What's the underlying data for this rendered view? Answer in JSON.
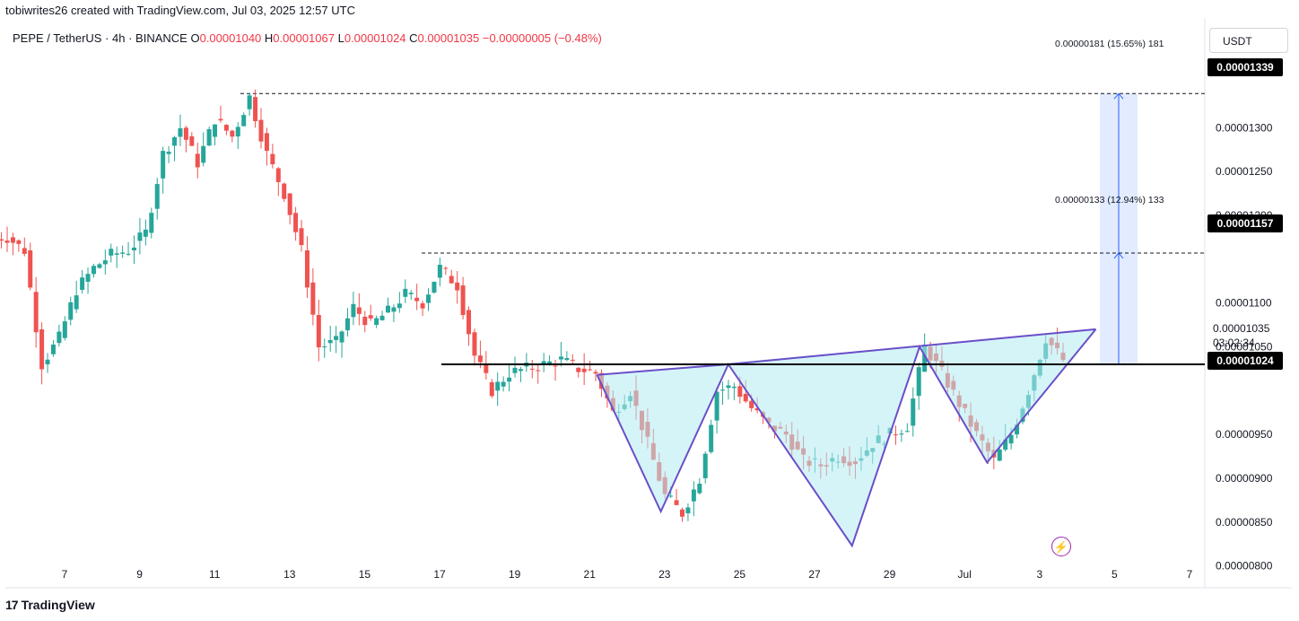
{
  "header": {
    "byline": "tobiwrites26 created with TradingView.com, Jul 03, 2025 12:57 UTC",
    "symbol": "PEPE / TetherUS · 4h · BINANCE",
    "o_key": "O",
    "o_val": "0.00001040",
    "h_key": "H",
    "h_val": "0.00001067",
    "l_key": "L",
    "l_val": "0.00001024",
    "c_key": "C",
    "c_val": "0.00001035",
    "change": "−0.00000005 (−0.48%)"
  },
  "currency_button": "USDT",
  "price_labels": {
    "target": "0.00001339",
    "neckline_level": "0.00001157",
    "current": "0.00001035",
    "countdown": "03:02:34",
    "low": "0.00001024"
  },
  "measurements": {
    "upper": "0.00000181 (15.65%) 181",
    "lower": "0.00000133 (12.94%) 133"
  },
  "footer_logo": "TradingView",
  "colors": {
    "up": "#26a69a",
    "down": "#ef5350",
    "pattern_line": "#6a4fc8",
    "pattern_fill": "#b2ebf2",
    "projection_fill": "#dbe6ff",
    "projection_line": "#2962ff"
  },
  "chart_data": {
    "type": "candlestick",
    "title": "PEPE / TetherUS · 4h · BINANCE",
    "ylim": [
      7.75e-06,
      1.415e-05
    ],
    "y_ticks": [
      "0.00001300",
      "0.00001250",
      "0.00001200",
      "0.00001100",
      "0.00001050",
      "0.00000950",
      "0.00000900",
      "0.00000850",
      "0.00000800"
    ],
    "x_ticks": [
      "7",
      "9",
      "11",
      "13",
      "15",
      "17",
      "19",
      "21",
      "23",
      "25",
      "27",
      "29",
      "Jul",
      "3",
      "5",
      "7"
    ],
    "close_path": [
      [
        "Jun 6",
        1.175e-05
      ],
      [
        "Jun 6 12h",
        1.16e-05
      ],
      [
        "Jun 6 20h",
        1.03e-05
      ],
      [
        "Jun 7",
        1.06e-05
      ],
      [
        "Jun 7 12h",
        1.115e-05
      ],
      [
        "Jun 8",
        1.14e-05
      ],
      [
        "Jun 8 12h",
        1.155e-05
      ],
      [
        "Jun 9",
        1.16e-05
      ],
      [
        "Jun 9 12h",
        1.18e-05
      ],
      [
        "Jun 10",
        1.27e-05
      ],
      [
        "Jun 10 8h",
        1.3e-05
      ],
      [
        "Jun 10 16h",
        1.26e-05
      ],
      [
        "Jun 11",
        1.31e-05
      ],
      [
        "Jun 11 12h",
        1.29e-05
      ],
      [
        "Jun 11 20h",
        1.335e-05
      ],
      [
        "Jun 12",
        1.27e-05
      ],
      [
        "Jun 12 12h",
        1.225e-05
      ],
      [
        "Jun 12 20h",
        1.16e-05
      ],
      [
        "Jun 13",
        1.05e-05
      ],
      [
        "Jun 13 12h",
        1.055e-05
      ],
      [
        "Jun 14",
        1.095e-05
      ],
      [
        "Jun 14 12h",
        1.075e-05
      ],
      [
        "Jun 15",
        1.09e-05
      ],
      [
        "Jun 15 12h",
        1.11e-05
      ],
      [
        "Jun 16",
        1.1e-05
      ],
      [
        "Jun 16 12h",
        1.14e-05
      ],
      [
        "Jun 16 20h",
        1.12e-05
      ],
      [
        "Jun 17",
        1.04e-05
      ],
      [
        "Jun 17 12h",
        1e-05
      ],
      [
        "Jun 18",
        1.02e-05
      ],
      [
        "Jun 18 12h",
        1.025e-05
      ],
      [
        "Jun 19",
        1.03e-05
      ],
      [
        "Jun 19 12h",
        1.035e-05
      ],
      [
        "Jun 20",
        1.025e-05
      ],
      [
        "Jun 20 12h",
        1.02e-05
      ],
      [
        "Jun 21",
        9.75e-06
      ],
      [
        "Jun 21 12h",
        1e-05
      ],
      [
        "Jun 22",
        9.4e-06
      ],
      [
        "Jun 22 12h",
        8.8e-06
      ],
      [
        "Jun 23",
        8.6e-06
      ],
      [
        "Jun 23 12h",
        9e-06
      ],
      [
        "Jun 24",
        1e-05
      ],
      [
        "Jun 24 12h",
        1.005e-05
      ],
      [
        "Jun 25",
        9.8e-06
      ],
      [
        "Jun 25 12h",
        9.6e-06
      ],
      [
        "Jun 26",
        9.5e-06
      ],
      [
        "Jun 26 12h",
        9.2e-06
      ],
      [
        "Jun 27",
        9.15e-06
      ],
      [
        "Jun 27 12h",
        9.25e-06
      ],
      [
        "Jun 28",
        9.2e-06
      ],
      [
        "Jun 28 12h",
        9.4e-06
      ],
      [
        "Jun 29",
        9.5e-06
      ],
      [
        "Jun 29 12h",
        9.6e-06
      ],
      [
        "Jun 30",
        1.05e-05
      ],
      [
        "Jun 30 12h",
        1.02e-05
      ],
      [
        "Jul 1",
        9.85e-06
      ],
      [
        "Jul 1 12h",
        9.5e-06
      ],
      [
        "Jul 2",
        9.2e-06
      ],
      [
        "Jul 2 12h",
        9.5e-06
      ],
      [
        "Jul 3",
        1e-05
      ],
      [
        "Jul 3 8h",
        1.06e-05
      ],
      [
        "Jul 3 12h",
        1.035e-05
      ]
    ],
    "neckline_horizontal": 1.03e-05,
    "projection_targets": [
      1.157e-05,
      1.339e-05
    ],
    "pattern": "inverse head and shoulders"
  }
}
